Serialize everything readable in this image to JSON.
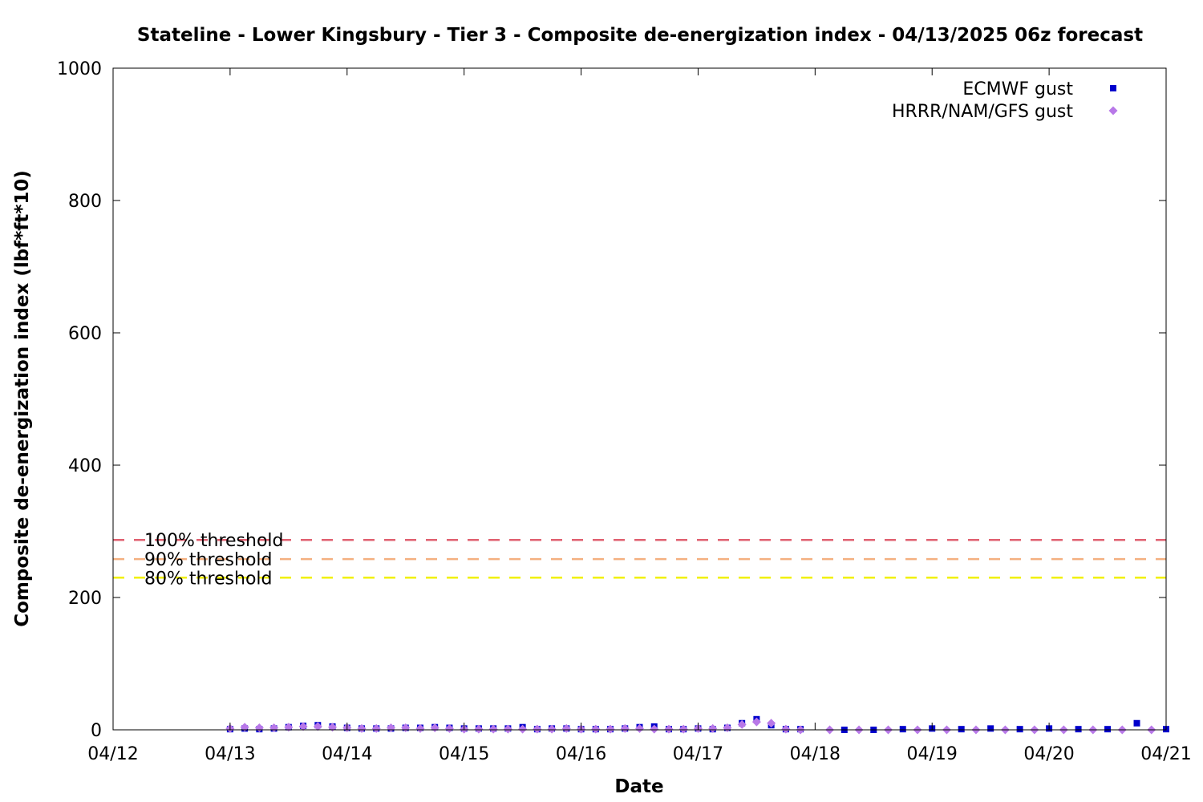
{
  "chart_data": {
    "type": "scatter",
    "title": "Stateline - Lower Kingsbury - Tier 3 - Composite de-energization index - 04/13/2025 06z forecast",
    "xlabel": "Date",
    "ylabel": "Composite de-energization index (lbf*ft*10)",
    "xlim": [
      "2025-04-12 00:00",
      "2025-04-21 00:00"
    ],
    "ylim": [
      0,
      1000
    ],
    "x_ticks": [
      "04/12",
      "04/13",
      "04/14",
      "04/15",
      "04/16",
      "04/17",
      "04/18",
      "04/19",
      "04/20",
      "04/21"
    ],
    "y_ticks": [
      0,
      200,
      400,
      600,
      800,
      1000
    ],
    "grid": false,
    "legend_position": "top-right",
    "thresholds": [
      {
        "label": "100% threshold",
        "value": 287,
        "color": "#e06070"
      },
      {
        "label": "90% threshold",
        "value": 258,
        "color": "#f4b080"
      },
      {
        "label": "80% threshold",
        "value": 230,
        "color": "#f0f000"
      }
    ],
    "series": [
      {
        "name": "ECMWF gust",
        "color": "#0000cc",
        "marker": "square",
        "points": [
          [
            "2025-04-13 00:00",
            1
          ],
          [
            "2025-04-13 03:00",
            2
          ],
          [
            "2025-04-13 06:00",
            1
          ],
          [
            "2025-04-13 09:00",
            2
          ],
          [
            "2025-04-13 12:00",
            4
          ],
          [
            "2025-04-13 15:00",
            6
          ],
          [
            "2025-04-13 18:00",
            7
          ],
          [
            "2025-04-13 21:00",
            5
          ],
          [
            "2025-04-14 00:00",
            3
          ],
          [
            "2025-04-14 03:00",
            2
          ],
          [
            "2025-04-14 06:00",
            2
          ],
          [
            "2025-04-14 09:00",
            2
          ],
          [
            "2025-04-14 12:00",
            3
          ],
          [
            "2025-04-14 15:00",
            3
          ],
          [
            "2025-04-14 18:00",
            4
          ],
          [
            "2025-04-14 21:00",
            3
          ],
          [
            "2025-04-15 00:00",
            2
          ],
          [
            "2025-04-15 03:00",
            2
          ],
          [
            "2025-04-15 06:00",
            2
          ],
          [
            "2025-04-15 09:00",
            2
          ],
          [
            "2025-04-15 12:00",
            4
          ],
          [
            "2025-04-15 15:00",
            1
          ],
          [
            "2025-04-15 18:00",
            2
          ],
          [
            "2025-04-15 21:00",
            2
          ],
          [
            "2025-04-16 00:00",
            1
          ],
          [
            "2025-04-16 03:00",
            1
          ],
          [
            "2025-04-16 06:00",
            1
          ],
          [
            "2025-04-16 09:00",
            2
          ],
          [
            "2025-04-16 12:00",
            4
          ],
          [
            "2025-04-16 15:00",
            5
          ],
          [
            "2025-04-16 18:00",
            1
          ],
          [
            "2025-04-16 21:00",
            1
          ],
          [
            "2025-04-17 00:00",
            2
          ],
          [
            "2025-04-17 03:00",
            1
          ],
          [
            "2025-04-17 06:00",
            3
          ],
          [
            "2025-04-17 09:00",
            10
          ],
          [
            "2025-04-17 12:00",
            16
          ],
          [
            "2025-04-17 15:00",
            7
          ],
          [
            "2025-04-17 18:00",
            1
          ],
          [
            "2025-04-17 21:00",
            1
          ],
          [
            "2025-04-18 06:00",
            0
          ],
          [
            "2025-04-18 12:00",
            0
          ],
          [
            "2025-04-18 18:00",
            1
          ],
          [
            "2025-04-19 00:00",
            2
          ],
          [
            "2025-04-19 06:00",
            1
          ],
          [
            "2025-04-19 12:00",
            2
          ],
          [
            "2025-04-19 18:00",
            1
          ],
          [
            "2025-04-20 00:00",
            2
          ],
          [
            "2025-04-20 06:00",
            1
          ],
          [
            "2025-04-20 12:00",
            1
          ],
          [
            "2025-04-20 18:00",
            10
          ],
          [
            "2025-04-21 00:00",
            1
          ]
        ]
      },
      {
        "name": "HRRR/NAM/GFS gust",
        "color": "#b878e8",
        "marker": "diamond",
        "points": [
          [
            "2025-04-13 00:00",
            2
          ],
          [
            "2025-04-13 03:00",
            4
          ],
          [
            "2025-04-13 06:00",
            3
          ],
          [
            "2025-04-13 09:00",
            3
          ],
          [
            "2025-04-13 12:00",
            4
          ],
          [
            "2025-04-13 15:00",
            5
          ],
          [
            "2025-04-13 18:00",
            5
          ],
          [
            "2025-04-13 21:00",
            4
          ],
          [
            "2025-04-14 00:00",
            3
          ],
          [
            "2025-04-14 03:00",
            2
          ],
          [
            "2025-04-14 06:00",
            2
          ],
          [
            "2025-04-14 09:00",
            3
          ],
          [
            "2025-04-14 12:00",
            3
          ],
          [
            "2025-04-14 15:00",
            2
          ],
          [
            "2025-04-14 18:00",
            3
          ],
          [
            "2025-04-14 21:00",
            2
          ],
          [
            "2025-04-15 00:00",
            1
          ],
          [
            "2025-04-15 03:00",
            1
          ],
          [
            "2025-04-15 06:00",
            1
          ],
          [
            "2025-04-15 09:00",
            1
          ],
          [
            "2025-04-15 12:00",
            1
          ],
          [
            "2025-04-15 15:00",
            1
          ],
          [
            "2025-04-15 18:00",
            1
          ],
          [
            "2025-04-15 21:00",
            2
          ],
          [
            "2025-04-16 00:00",
            1
          ],
          [
            "2025-04-16 03:00",
            1
          ],
          [
            "2025-04-16 06:00",
            1
          ],
          [
            "2025-04-16 09:00",
            2
          ],
          [
            "2025-04-16 12:00",
            2
          ],
          [
            "2025-04-16 15:00",
            1
          ],
          [
            "2025-04-16 18:00",
            1
          ],
          [
            "2025-04-16 21:00",
            1
          ],
          [
            "2025-04-17 00:00",
            2
          ],
          [
            "2025-04-17 03:00",
            2
          ],
          [
            "2025-04-17 06:00",
            3
          ],
          [
            "2025-04-17 09:00",
            8
          ],
          [
            "2025-04-17 12:00",
            12
          ],
          [
            "2025-04-17 15:00",
            10
          ],
          [
            "2025-04-17 18:00",
            1
          ],
          [
            "2025-04-17 21:00",
            0
          ],
          [
            "2025-04-18 03:00",
            0
          ],
          [
            "2025-04-18 09:00",
            0
          ],
          [
            "2025-04-18 15:00",
            0
          ],
          [
            "2025-04-18 21:00",
            0
          ],
          [
            "2025-04-19 03:00",
            0
          ],
          [
            "2025-04-19 09:00",
            0
          ],
          [
            "2025-04-19 15:00",
            0
          ],
          [
            "2025-04-19 21:00",
            0
          ],
          [
            "2025-04-20 03:00",
            0
          ],
          [
            "2025-04-20 09:00",
            0
          ],
          [
            "2025-04-20 15:00",
            0
          ],
          [
            "2025-04-20 21:00",
            0
          ]
        ]
      }
    ]
  }
}
